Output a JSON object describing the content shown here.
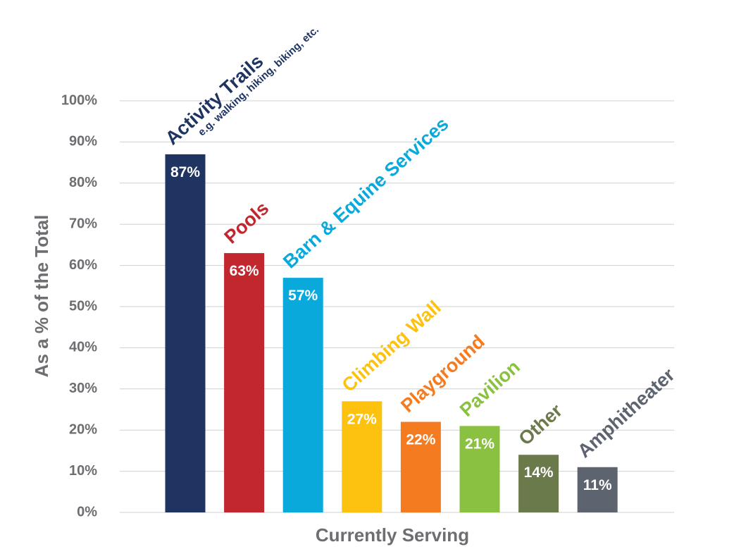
{
  "chart_data": {
    "type": "bar",
    "y_axis_title": "As a % of the Total",
    "x_axis_title": "Currently Serving",
    "annotation": "e.g. walking, hiking, biking, etc.",
    "categories": [
      "Activity Trails",
      "Pools",
      "Barn & Equine Services",
      "Climbing Wall",
      "Playground",
      "Pavilion",
      "Other",
      "Amphitheater"
    ],
    "values": [
      87,
      63,
      57,
      27,
      22,
      21,
      14,
      11
    ],
    "value_labels": [
      "87%",
      "63%",
      "57%",
      "27%",
      "22%",
      "21%",
      "14%",
      "11%"
    ],
    "colors": [
      "#1f3461",
      "#c1272d",
      "#0aa9dc",
      "#fdc210",
      "#f47b20",
      "#8bc140",
      "#6b7a4b",
      "#5d6470"
    ],
    "ylim": [
      0,
      100
    ],
    "yticks": [
      {
        "value": 0,
        "label": "0%"
      },
      {
        "value": 10,
        "label": "10%"
      },
      {
        "value": 20,
        "label": "20%"
      },
      {
        "value": 30,
        "label": "30%"
      },
      {
        "value": 40,
        "label": "40%"
      },
      {
        "value": 50,
        "label": "50%"
      },
      {
        "value": 60,
        "label": "60%"
      },
      {
        "value": 70,
        "label": "70%"
      },
      {
        "value": 80,
        "label": "80%"
      },
      {
        "value": 90,
        "label": "90%"
      },
      {
        "value": 100,
        "label": "100%"
      }
    ],
    "grid": true
  }
}
